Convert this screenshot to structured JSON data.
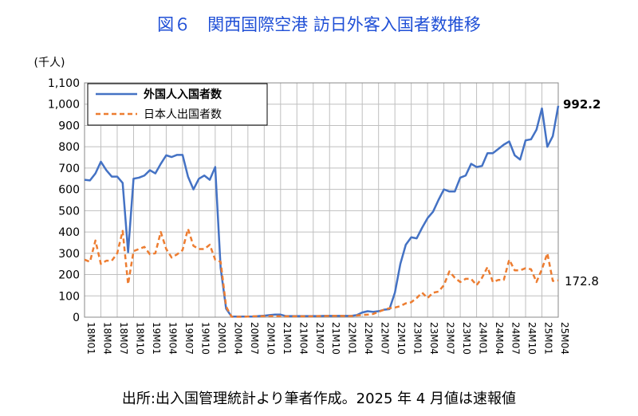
{
  "title": "図６　関西国際空港  訪日外客入国者数推移",
  "source_note": "出所:出入国管理統計より筆者作成。2025 年 4 月値は速報値",
  "chart_data": {
    "type": "line",
    "unit_label": "(千人)",
    "ylim": [
      0,
      1100
    ],
    "yticks": [
      0,
      100,
      200,
      300,
      400,
      500,
      600,
      700,
      800,
      900,
      1000,
      1100
    ],
    "ytick_labels": [
      "0",
      "100",
      "200",
      "300",
      "400",
      "500",
      "600",
      "700",
      "800",
      "900",
      "1,000",
      "1,100"
    ],
    "x": [
      "18M01",
      "18M02",
      "18M03",
      "18M04",
      "18M05",
      "18M06",
      "18M07",
      "18M08",
      "18M09",
      "18M10",
      "18M11",
      "18M12",
      "19M01",
      "19M02",
      "19M03",
      "19M04",
      "19M05",
      "19M06",
      "19M07",
      "19M08",
      "19M09",
      "19M10",
      "19M11",
      "19M12",
      "20M01",
      "20M02",
      "20M03",
      "20M04",
      "20M05",
      "20M06",
      "20M07",
      "20M08",
      "20M09",
      "20M10",
      "20M11",
      "20M12",
      "21M01",
      "21M02",
      "21M03",
      "21M04",
      "21M05",
      "21M06",
      "21M07",
      "21M08",
      "21M09",
      "21M10",
      "21M11",
      "21M12",
      "22M01",
      "22M02",
      "22M03",
      "22M04",
      "22M05",
      "22M06",
      "22M07",
      "22M08",
      "22M09",
      "22M10",
      "22M11",
      "22M12",
      "23M01",
      "23M02",
      "23M03",
      "23M04",
      "23M05",
      "23M06",
      "23M07",
      "23M08",
      "23M09",
      "23M10",
      "23M11",
      "23M12",
      "24M01",
      "24M02",
      "24M03",
      "24M04",
      "24M05",
      "24M06",
      "24M07",
      "24M08",
      "24M09",
      "24M10",
      "24M11",
      "24M12",
      "25M01",
      "25M02",
      "25M03",
      "25M04"
    ],
    "xtick_labels": [
      "18M01",
      "18M04",
      "18M07",
      "18M10",
      "19M01",
      "19M04",
      "19M07",
      "19M10",
      "20M01",
      "20M04",
      "20M07",
      "20M10",
      "21M01",
      "21M04",
      "21M07",
      "21M10",
      "22M01",
      "22M04",
      "22M07",
      "22M10",
      "23M01",
      "23M04",
      "23M07",
      "23M10",
      "24M01",
      "24M04",
      "24M07",
      "24M10",
      "25M01",
      "25M04"
    ],
    "series": [
      {
        "name": "外国人入国者数",
        "color": "#4472c4",
        "dash": "solid",
        "values": [
          645,
          642,
          675,
          730,
          690,
          660,
          660,
          630,
          305,
          650,
          655,
          665,
          690,
          675,
          720,
          760,
          752,
          762,
          762,
          660,
          600,
          650,
          665,
          645,
          705,
          230,
          40,
          3,
          3,
          3,
          3,
          3,
          5,
          7,
          10,
          12,
          12,
          5,
          5,
          5,
          5,
          5,
          5,
          5,
          6,
          6,
          6,
          6,
          6,
          6,
          10,
          22,
          28,
          25,
          28,
          35,
          38,
          115,
          250,
          340,
          375,
          370,
          420,
          465,
          495,
          550,
          600,
          590,
          590,
          655,
          665,
          720,
          705,
          710,
          770,
          770,
          790,
          810,
          825,
          760,
          740,
          830,
          835,
          880,
          980,
          800,
          850,
          992.2
        ]
      },
      {
        "name": "日本人出国者数",
        "color": "#ed7d31",
        "dash": "dashed",
        "values": [
          270,
          260,
          360,
          250,
          265,
          265,
          300,
          405,
          155,
          310,
          320,
          330,
          295,
          300,
          400,
          320,
          280,
          295,
          315,
          415,
          335,
          320,
          320,
          340,
          270,
          260,
          50,
          2,
          2,
          2,
          3,
          4,
          4,
          5,
          5,
          5,
          4,
          4,
          4,
          4,
          4,
          4,
          4,
          5,
          5,
          6,
          6,
          6,
          5,
          5,
          8,
          10,
          12,
          15,
          25,
          35,
          42,
          45,
          52,
          65,
          70,
          90,
          115,
          90,
          115,
          120,
          150,
          215,
          185,
          165,
          180,
          180,
          150,
          185,
          235,
          165,
          175,
          175,
          270,
          220,
          220,
          230,
          225,
          165,
          225,
          300,
          170,
          172.8
        ]
      }
    ],
    "end_labels": [
      "992.2",
      "172.8"
    ],
    "legend_position": "top-left",
    "grid": true
  }
}
